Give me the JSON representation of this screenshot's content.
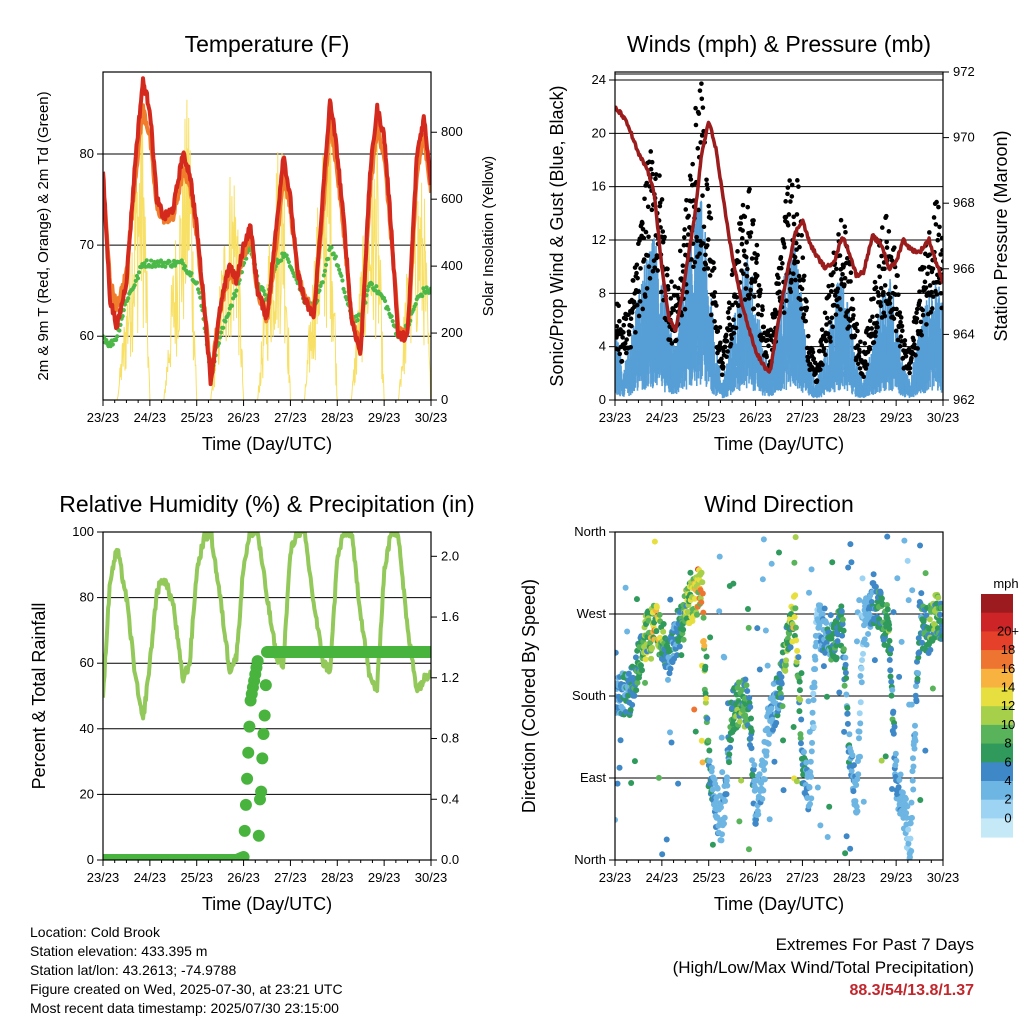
{
  "colors": {
    "temp2m": "#d42a1e",
    "temp9m": "#f07d2c",
    "dewpoint": "#4cb848",
    "solar": "#f7e065",
    "wind": "#579fd6",
    "gust": "#000000",
    "pressure": "#9b1c1c",
    "rh": "#92c95a",
    "precip": "#48b43e",
    "speed_scale": [
      "#c6e9f8",
      "#9dd4f3",
      "#6db5e2",
      "#3f88c7",
      "#2f9a5c",
      "#58b35a",
      "#a6cf4a",
      "#e6df3f",
      "#f7b23f",
      "#ee7531",
      "#e4402a",
      "#cd2527",
      "#9b1b1e"
    ]
  },
  "x_axis": {
    "xlabel": "Time (Day/UTC)",
    "ticks": [
      "23/23",
      "24/23",
      "25/23",
      "26/23",
      "27/23",
      "28/23",
      "29/23",
      "30/23"
    ],
    "range": [
      0,
      7
    ]
  },
  "chart_data": [
    {
      "id": "temperature",
      "type": "line",
      "title": "Temperature (F)",
      "ylabel": "2m & 9m T (Red, Orange) & 2m Td (Green)",
      "ylabel_right": "Solar Insolation (Yellow)",
      "ylim": [
        53,
        89
      ],
      "yticks": [
        60,
        70,
        80
      ],
      "ylim_right": [
        0,
        980
      ],
      "yticks_right": [
        0,
        200,
        400,
        600,
        800
      ],
      "x": [
        0,
        0.15,
        0.3,
        0.5,
        0.7,
        0.85,
        1,
        1.15,
        1.3,
        1.5,
        1.7,
        1.85,
        2,
        2.15,
        2.3,
        2.5,
        2.7,
        2.85,
        3,
        3.15,
        3.3,
        3.5,
        3.7,
        3.85,
        4,
        4.15,
        4.3,
        4.5,
        4.7,
        4.85,
        5,
        5.15,
        5.3,
        5.5,
        5.7,
        5.85,
        6,
        6.15,
        6.3,
        6.5,
        6.7,
        6.85,
        7
      ],
      "series": [
        {
          "name": "2m T",
          "values": [
            78,
            64,
            61,
            66,
            80,
            88,
            85,
            75,
            73,
            74,
            80,
            78,
            72,
            64,
            55,
            63,
            68,
            66,
            70,
            72,
            65,
            62,
            72,
            80,
            75,
            67,
            64,
            62,
            76,
            86,
            80,
            72,
            62,
            58,
            78,
            85,
            82,
            72,
            60,
            60,
            80,
            84,
            77
          ]
        },
        {
          "name": "9m T",
          "values": [
            77,
            66,
            63,
            67,
            78,
            85,
            82,
            74,
            73,
            73,
            78,
            77,
            71,
            64,
            56,
            63,
            67,
            66,
            69,
            71,
            65,
            62,
            70,
            78,
            74,
            67,
            64,
            63,
            74,
            84,
            78,
            71,
            62,
            59,
            76,
            83,
            80,
            71,
            61,
            60,
            78,
            82,
            76
          ]
        },
        {
          "name": "2m Td",
          "values": [
            60,
            59,
            60,
            64,
            66,
            68,
            68,
            68,
            68,
            68,
            68,
            67,
            66,
            62,
            56,
            60,
            63,
            65,
            68,
            70,
            66,
            64,
            68,
            69,
            68,
            66,
            64,
            63,
            66,
            70,
            68,
            65,
            62,
            62,
            66,
            65,
            64,
            62,
            60,
            61,
            64,
            65,
            65
          ]
        },
        {
          "name": "Solar Insolation",
          "values": [
            0,
            0,
            0,
            300,
            700,
            880,
            0,
            0,
            0,
            400,
            700,
            920,
            0,
            0,
            0,
            350,
            650,
            700,
            0,
            0,
            0,
            400,
            700,
            800,
            0,
            0,
            0,
            420,
            720,
            850,
            0,
            0,
            0,
            380,
            650,
            720,
            0,
            0,
            0,
            400,
            650,
            600,
            0
          ]
        }
      ]
    },
    {
      "id": "winds",
      "type": "line",
      "title": "Winds (mph) & Pressure (mb)",
      "ylabel": "Sonic/Prop Wind & Gust (Blue, Black)",
      "ylabel_right": "Station Pressure (Maroon)",
      "ylim": [
        0,
        24.6
      ],
      "yticks": [
        0,
        4,
        8,
        12,
        16,
        20,
        24
      ],
      "ylim_right": [
        962,
        972
      ],
      "yticks_right": [
        962,
        964,
        966,
        968,
        970,
        972
      ],
      "x": [
        0,
        0.15,
        0.3,
        0.5,
        0.7,
        0.85,
        1,
        1.15,
        1.3,
        1.5,
        1.7,
        1.85,
        2,
        2.15,
        2.3,
        2.5,
        2.7,
        2.85,
        3,
        3.15,
        3.3,
        3.5,
        3.7,
        3.85,
        4,
        4.15,
        4.3,
        4.5,
        4.7,
        4.85,
        5,
        5.15,
        5.3,
        5.5,
        5.7,
        5.85,
        6,
        6.15,
        6.3,
        6.5,
        6.7,
        6.85,
        7
      ],
      "series": [
        {
          "name": "Wind",
          "values": [
            4,
            2,
            3,
            6,
            8,
            9,
            7,
            4,
            3,
            7,
            10,
            11,
            7,
            3,
            1,
            4,
            7,
            8,
            6,
            3,
            2,
            5,
            8,
            9,
            5,
            2,
            1,
            3,
            6,
            7,
            5,
            2,
            1,
            3,
            6,
            7,
            5,
            2,
            1,
            4,
            6,
            7,
            5
          ]
        },
        {
          "name": "Gust",
          "values": [
            7,
            5,
            6,
            10,
            15,
            17,
            13,
            8,
            7,
            12,
            18,
            20,
            14,
            7,
            3,
            8,
            12,
            14,
            11,
            6,
            4,
            9,
            14,
            16,
            10,
            4,
            2,
            6,
            10,
            12,
            9,
            5,
            3,
            7,
            11,
            12,
            9,
            4,
            3,
            8,
            11,
            14,
            10
          ]
        },
        {
          "name": "Pressure",
          "values": [
            970.9,
            970.7,
            970.3,
            969.5,
            969.0,
            968.2,
            966.0,
            964.5,
            964.1,
            965.8,
            967.6,
            969.5,
            970.5,
            969.7,
            968.2,
            966.4,
            965.0,
            964.2,
            963.5,
            963.1,
            962.8,
            964.5,
            966.1,
            967.1,
            967.5,
            966.8,
            966.4,
            966.0,
            966.3,
            967.0,
            966.5,
            965.8,
            965.9,
            967.0,
            966.7,
            966.0,
            966.2,
            966.9,
            966.6,
            966.5,
            966.9,
            966.2,
            965.6
          ]
        }
      ]
    },
    {
      "id": "humidity",
      "type": "line",
      "title": "Relative Humidity (%) & Precipitation (in)",
      "ylabel": "Percent & Total Rainfall",
      "ylim": [
        0,
        100
      ],
      "yticks": [
        0,
        20,
        40,
        60,
        80,
        100
      ],
      "ylim_right": [
        0,
        2.16
      ],
      "yticks_right": [
        "0.0",
        "0.4",
        "0.8",
        "1.2",
        "1.6",
        "2.0"
      ],
      "x": [
        0,
        0.15,
        0.3,
        0.5,
        0.7,
        0.85,
        1,
        1.15,
        1.3,
        1.5,
        1.7,
        1.85,
        2,
        2.15,
        2.3,
        2.5,
        2.7,
        2.85,
        3,
        3.15,
        3.3,
        3.5,
        3.7,
        3.85,
        4,
        4.15,
        4.3,
        4.5,
        4.7,
        4.85,
        5,
        5.15,
        5.3,
        5.5,
        5.7,
        5.85,
        6,
        6.15,
        6.3,
        6.5,
        6.7,
        6.85,
        7
      ],
      "series": [
        {
          "name": "RH",
          "values": [
            50,
            85,
            95,
            80,
            55,
            42,
            60,
            82,
            86,
            78,
            55,
            60,
            88,
            98,
            100,
            80,
            58,
            62,
            90,
            100,
            100,
            80,
            62,
            60,
            94,
            100,
            100,
            78,
            60,
            58,
            92,
            100,
            100,
            75,
            55,
            52,
            88,
            100,
            100,
            70,
            52,
            55,
            58
          ]
        },
        {
          "name": "Precipitation",
          "values": [
            0,
            0,
            0,
            0,
            0,
            0,
            0,
            0,
            0,
            0,
            0,
            0,
            0,
            0,
            0,
            0,
            0,
            0,
            0.02,
            1.05,
            1.31,
            1.37,
            1.37,
            1.37,
            1.37,
            1.37,
            1.37,
            1.37,
            1.37,
            1.37,
            1.37,
            1.37,
            1.37,
            1.37,
            1.37,
            1.37,
            1.37,
            1.37,
            1.37,
            1.37,
            1.37,
            1.37,
            1.37
          ]
        }
      ]
    },
    {
      "id": "direction",
      "type": "scatter",
      "title": "Wind Direction",
      "ylabel": "Direction (Colored By Speed)",
      "ylim": [
        0,
        360
      ],
      "yticks": [
        0,
        90,
        180,
        270,
        360
      ],
      "ytick_labels": [
        "North",
        "East",
        "South",
        "West",
        "North"
      ],
      "legend_title": "mph",
      "legend_labels": [
        "0",
        "2",
        "4",
        "6",
        "8",
        "10",
        "12",
        "14",
        "16",
        "18",
        "20+"
      ],
      "x": [
        0,
        0.15,
        0.3,
        0.5,
        0.7,
        0.85,
        1,
        1.15,
        1.3,
        1.5,
        1.7,
        1.85,
        2,
        2.15,
        2.3,
        2.5,
        2.7,
        2.85,
        3,
        3.15,
        3.3,
        3.5,
        3.7,
        3.85,
        4,
        4.15,
        4.3,
        4.5,
        4.7,
        4.85,
        5,
        5.15,
        5.3,
        5.5,
        5.7,
        5.85,
        6,
        6.15,
        6.3,
        6.5,
        6.7,
        6.85,
        7
      ],
      "series": [
        {
          "name": "Direction",
          "values": [
            180,
            185,
            180,
            220,
            250,
            260,
            240,
            220,
            240,
            270,
            290,
            300,
            100,
            60,
            40,
            160,
            180,
            170,
            60,
            90,
            160,
            180,
            250,
            270,
            110,
            70,
            260,
            250,
            240,
            260,
            120,
            60,
            260,
            280,
            270,
            250,
            90,
            60,
            20,
            260,
            250,
            270,
            260
          ]
        },
        {
          "name": "Speed",
          "values": [
            3,
            4,
            5,
            6,
            9,
            12,
            8,
            4,
            4,
            8,
            12,
            13,
            5,
            3,
            2,
            6,
            8,
            6,
            3,
            2,
            2,
            5,
            9,
            10,
            5,
            2,
            1,
            4,
            6,
            6,
            4,
            2,
            1,
            4,
            7,
            7,
            4,
            2,
            1,
            5,
            7,
            8,
            6
          ]
        }
      ]
    }
  ],
  "footer": {
    "location": "Location: Cold Brook",
    "elevation": "Station elevation: 433.395 m",
    "latlon": "Station lat/lon: 43.2613; -74.9788",
    "created": "Figure created on Wed, 2025-07-30, at 23:21 UTC",
    "timestamp": "Most recent data timestamp: 2025/07/30 23:15:00"
  },
  "extremes": {
    "title": "Extremes For Past 7 Days",
    "subtitle": "(High/Low/Max Wind/Total Precipitation)",
    "values": "88.3/54/13.8/1.37"
  }
}
